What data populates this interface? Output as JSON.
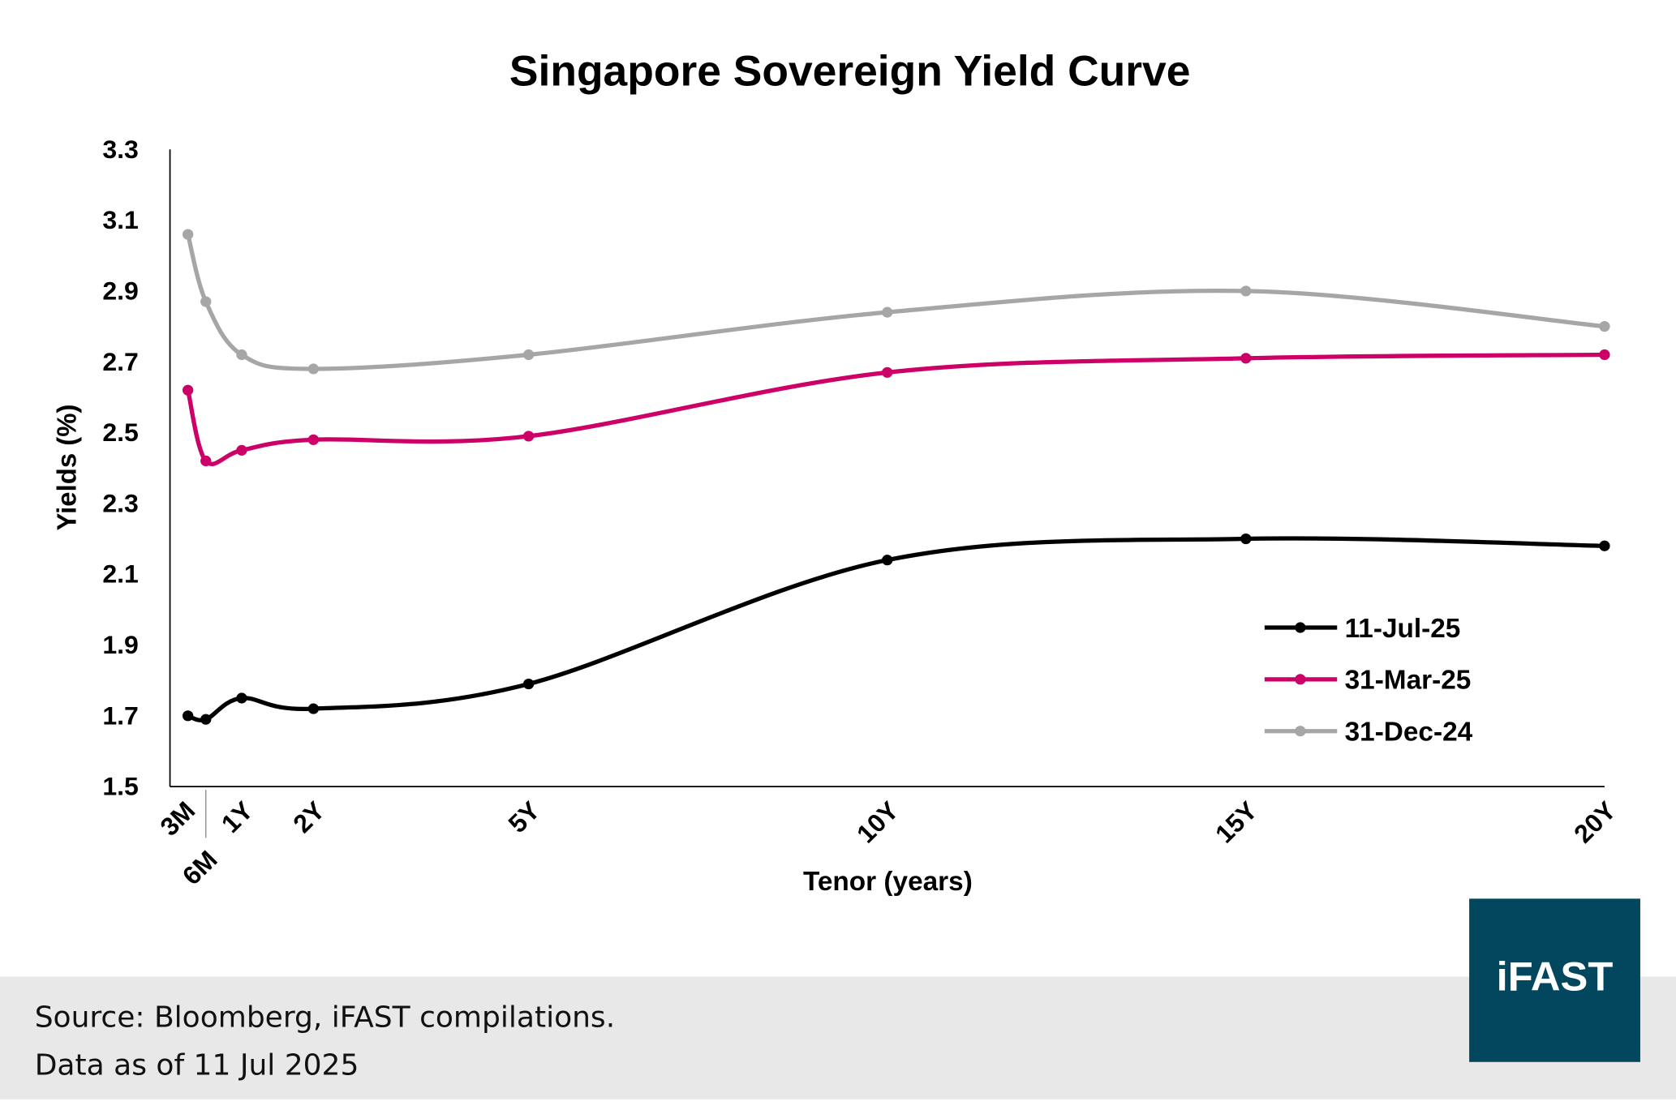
{
  "chart_data": {
    "type": "line",
    "title": "Singapore Sovereign Yield Curve",
    "xlabel": "Tenor (years)",
    "ylabel": "Yields (%)",
    "ylim": [
      1.5,
      3.3
    ],
    "yticks": [
      "1.5",
      "1.7",
      "1.9",
      "2.1",
      "2.3",
      "2.5",
      "2.7",
      "2.9",
      "3.1",
      "3.3"
    ],
    "xlim": [
      0,
      20
    ],
    "categories": [
      "3M",
      "6M",
      "1Y",
      "2Y",
      "5Y",
      "10Y",
      "15Y",
      "20Y"
    ],
    "x": [
      0.25,
      0.5,
      1,
      2,
      5,
      10,
      15,
      20
    ],
    "grid": false,
    "legend_position": "bottom-right",
    "series": [
      {
        "name": "11-Jul-25",
        "color": "#000000",
        "values": [
          1.7,
          1.69,
          1.75,
          1.72,
          1.79,
          2.14,
          2.2,
          2.18
        ]
      },
      {
        "name": "31-Mar-25",
        "color": "#cc0066",
        "values": [
          2.62,
          2.42,
          2.45,
          2.48,
          2.49,
          2.67,
          2.71,
          2.72
        ]
      },
      {
        "name": "31-Dec-24",
        "color": "#a6a6a6",
        "values": [
          3.06,
          2.87,
          2.72,
          2.68,
          2.72,
          2.84,
          2.9,
          2.8
        ]
      }
    ]
  },
  "footer": {
    "source": "Source: Bloomberg, iFAST compilations.",
    "date": "Data as of 11 Jul 2025",
    "logo_text": "iFAST",
    "logo_color": "#02475e"
  }
}
